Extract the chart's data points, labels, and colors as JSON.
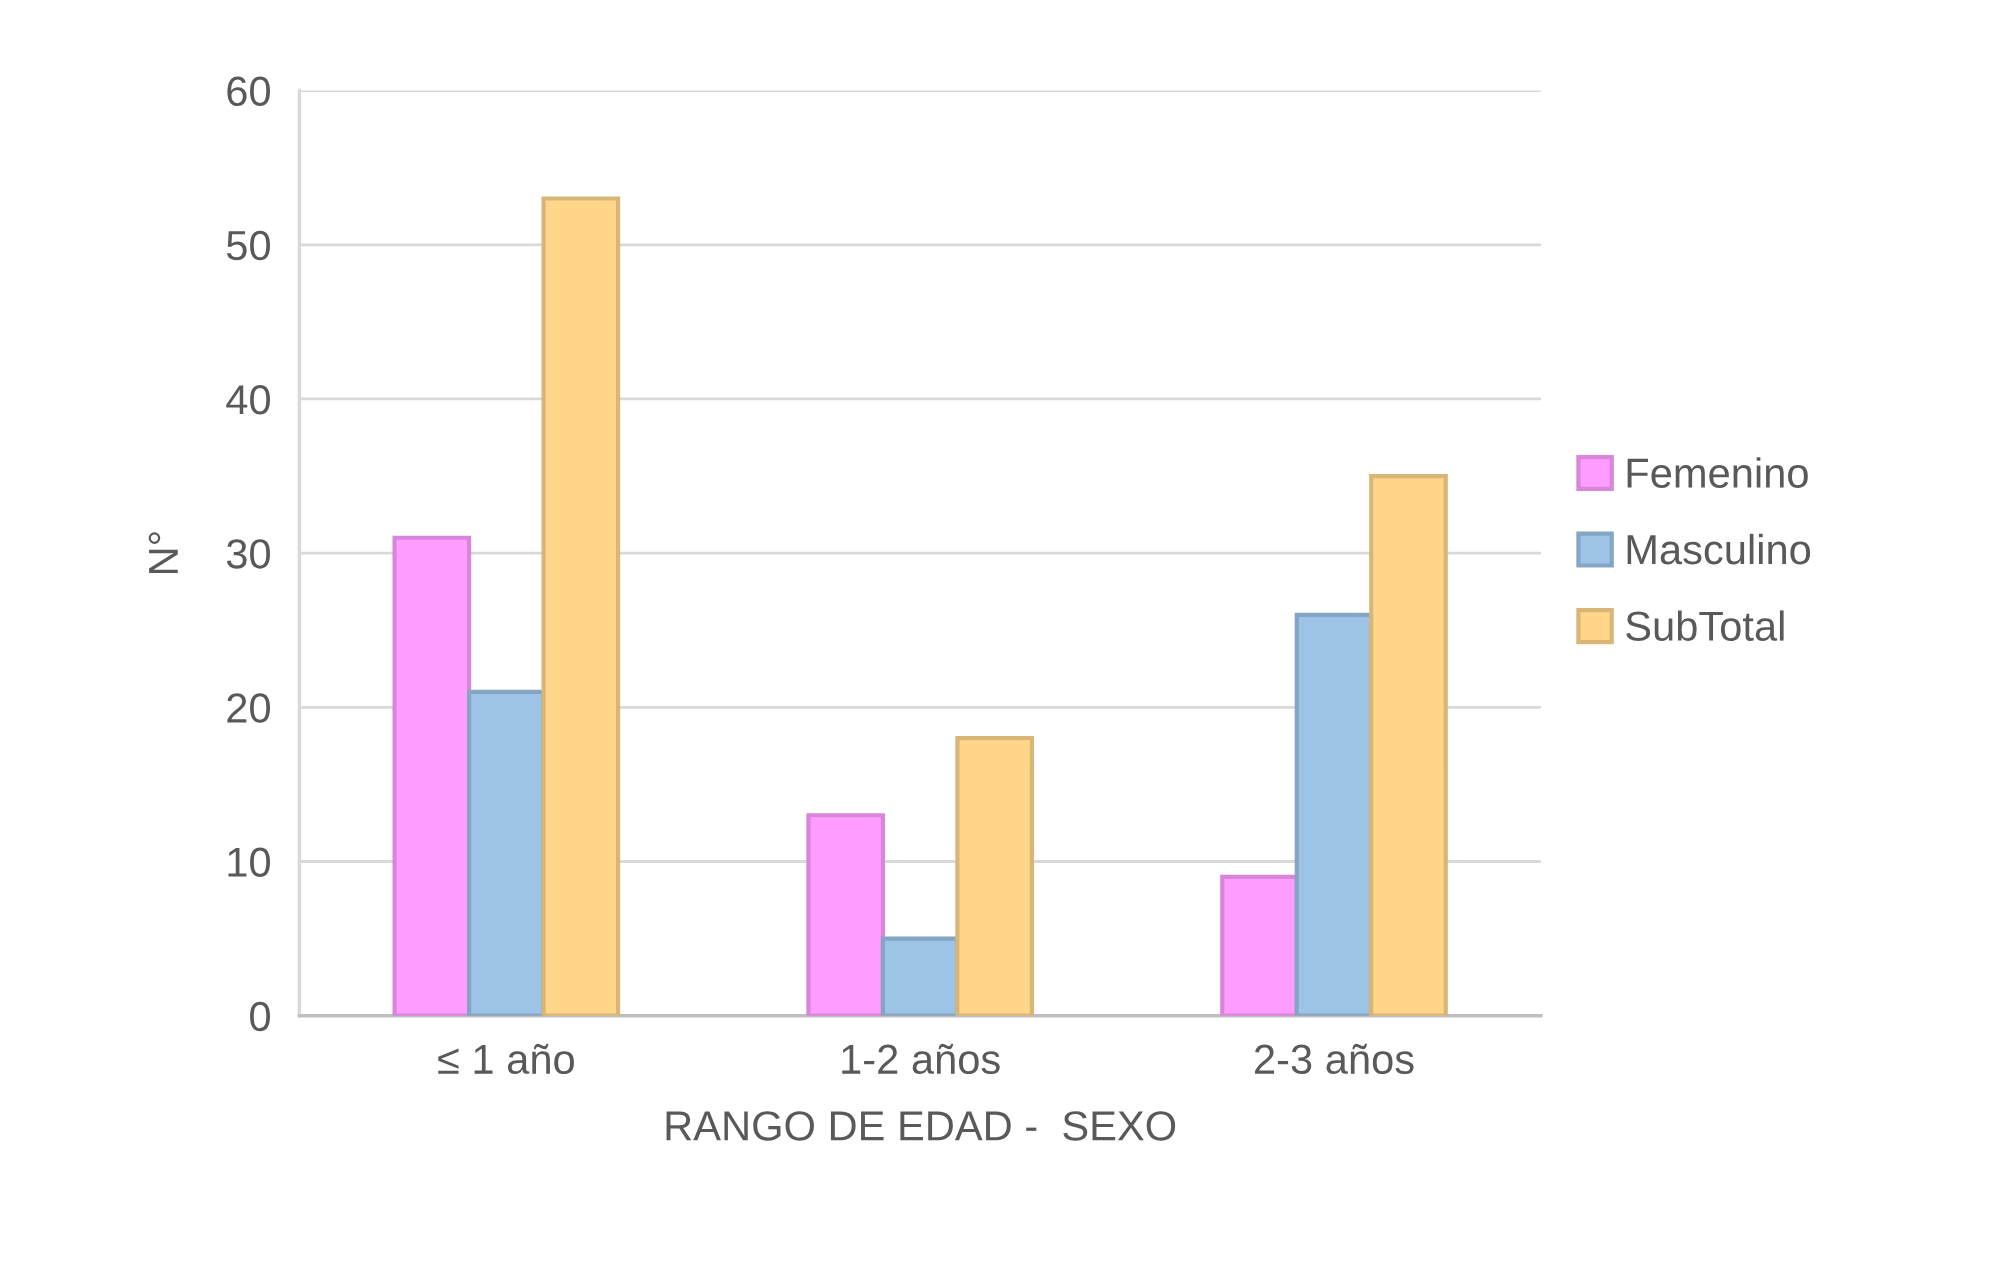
{
  "chart_data": {
    "type": "bar",
    "xlabel": "RANGO DE EDAD -  SEXO",
    "ylabel": "N°",
    "categories": [
      "≤ 1 año",
      "1-2 años",
      "2-3 años"
    ],
    "series": [
      {
        "name": "Femenino",
        "color": "#ff9cff",
        "values": [
          31,
          13,
          9
        ]
      },
      {
        "name": "Masculino",
        "color": "#9dc3e6",
        "values": [
          21,
          5,
          26
        ]
      },
      {
        "name": "SubTotal",
        "color": "#ffd68a",
        "values": [
          53,
          18,
          35
        ]
      }
    ],
    "ylim": [
      0,
      60
    ],
    "yticks": [
      0,
      10,
      20,
      30,
      40,
      50,
      60
    ],
    "grid": "y",
    "legend": "right"
  }
}
